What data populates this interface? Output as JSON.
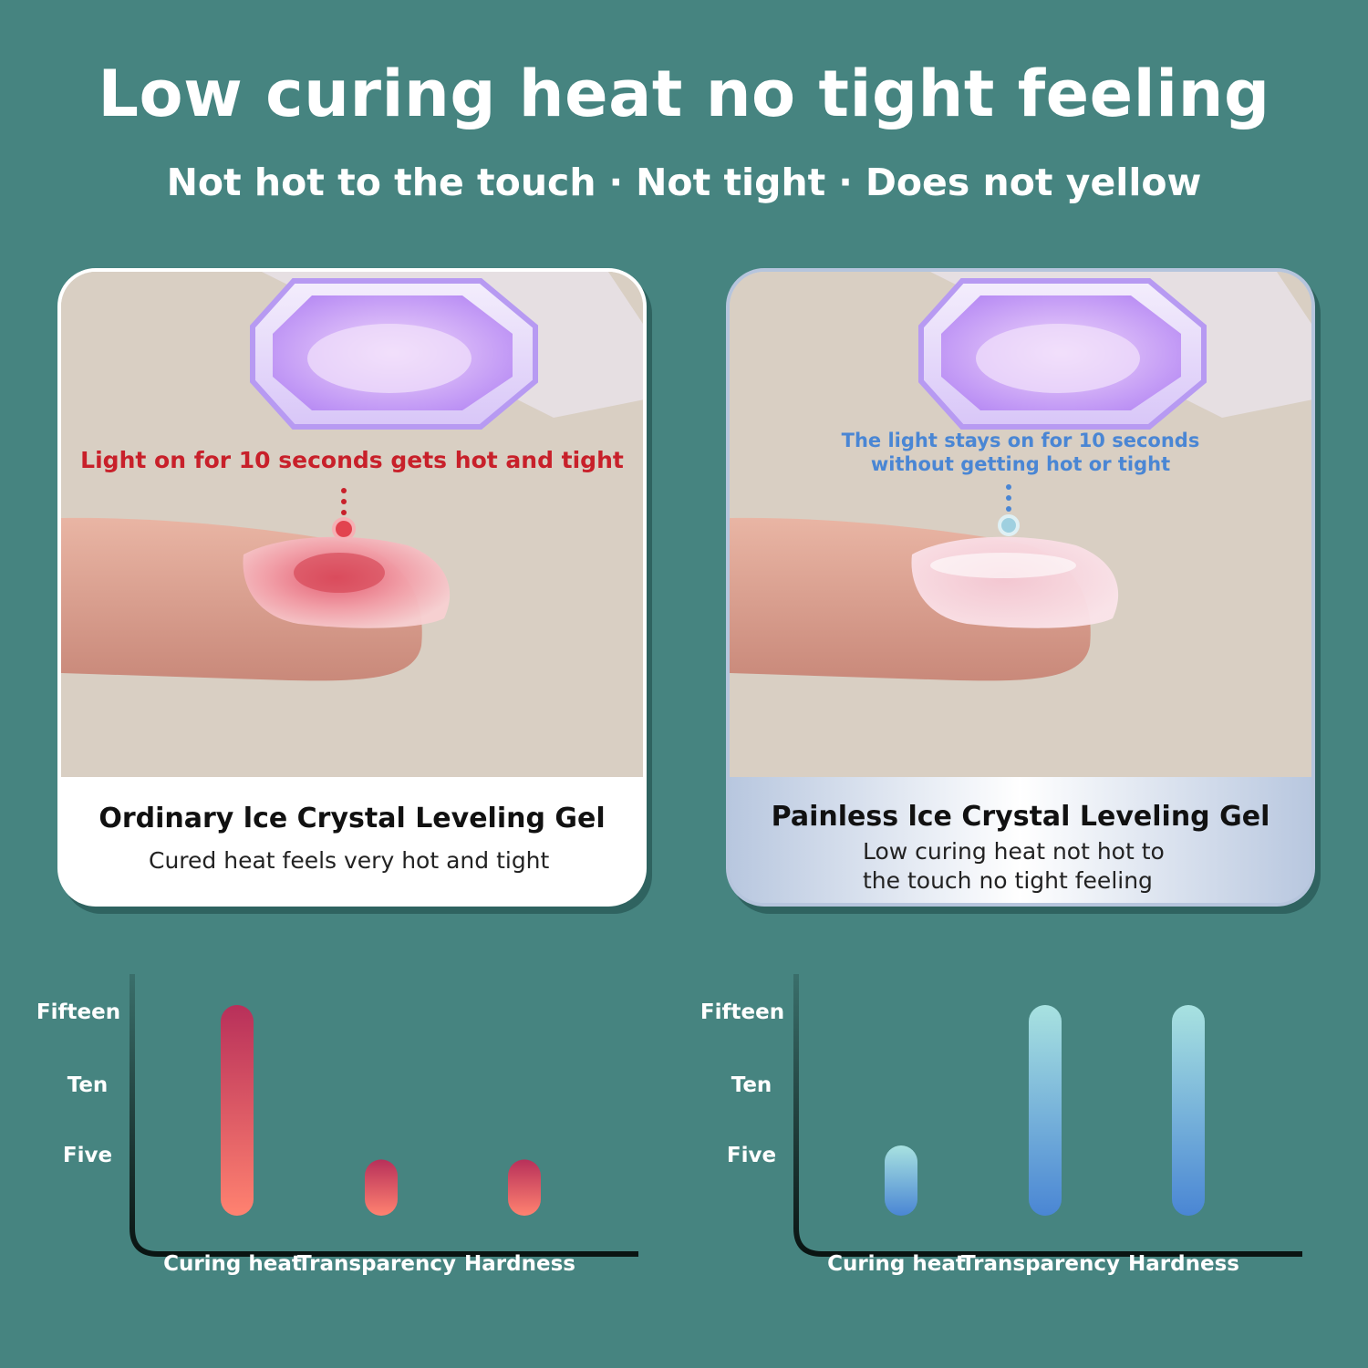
{
  "header": {
    "title": "Low curing heat no tight feeling",
    "features": [
      "Not hot to the touch",
      "Not tight",
      "Does not yellow"
    ],
    "separator": "·"
  },
  "cards": {
    "left": {
      "callout": "Light on for 10 seconds gets hot and tight",
      "title": "Ordinary lce Crystal Leveling Gel",
      "description": "Cured heat feels very hot and tight",
      "accent_color": "#c8202a"
    },
    "right": {
      "callout_line1": "The light stays on for 10 seconds",
      "callout_line2": "without getting hot or tight",
      "title": "Painless lce Crystal Leveling Gel",
      "description_line1": "Low curing heat not hot to",
      "description_line2": "the touch no tight feeling",
      "accent_color": "#4a86d4"
    }
  },
  "chart_data": [
    {
      "type": "bar",
      "title": "",
      "categories": [
        "Curing heat",
        "Transparency",
        "Hardness"
      ],
      "values": [
        15,
        4,
        4
      ],
      "y_tick_labels": [
        "Five",
        "Ten",
        "Fifteen"
      ],
      "y_tick_values": [
        5,
        10,
        15
      ],
      "ylim": [
        0,
        15
      ],
      "bar_gradient": [
        "#b8305a",
        "#ff8270"
      ]
    },
    {
      "type": "bar",
      "title": "",
      "categories": [
        "Curing heat",
        "Transparency",
        "Hardness"
      ],
      "values": [
        5,
        15,
        15
      ],
      "y_tick_labels": [
        "Five",
        "Ten",
        "Fifteen"
      ],
      "y_tick_values": [
        5,
        10,
        15
      ],
      "ylim": [
        0,
        15
      ],
      "bar_gradient": [
        "#a8e2e0",
        "#4a86d4"
      ]
    }
  ]
}
